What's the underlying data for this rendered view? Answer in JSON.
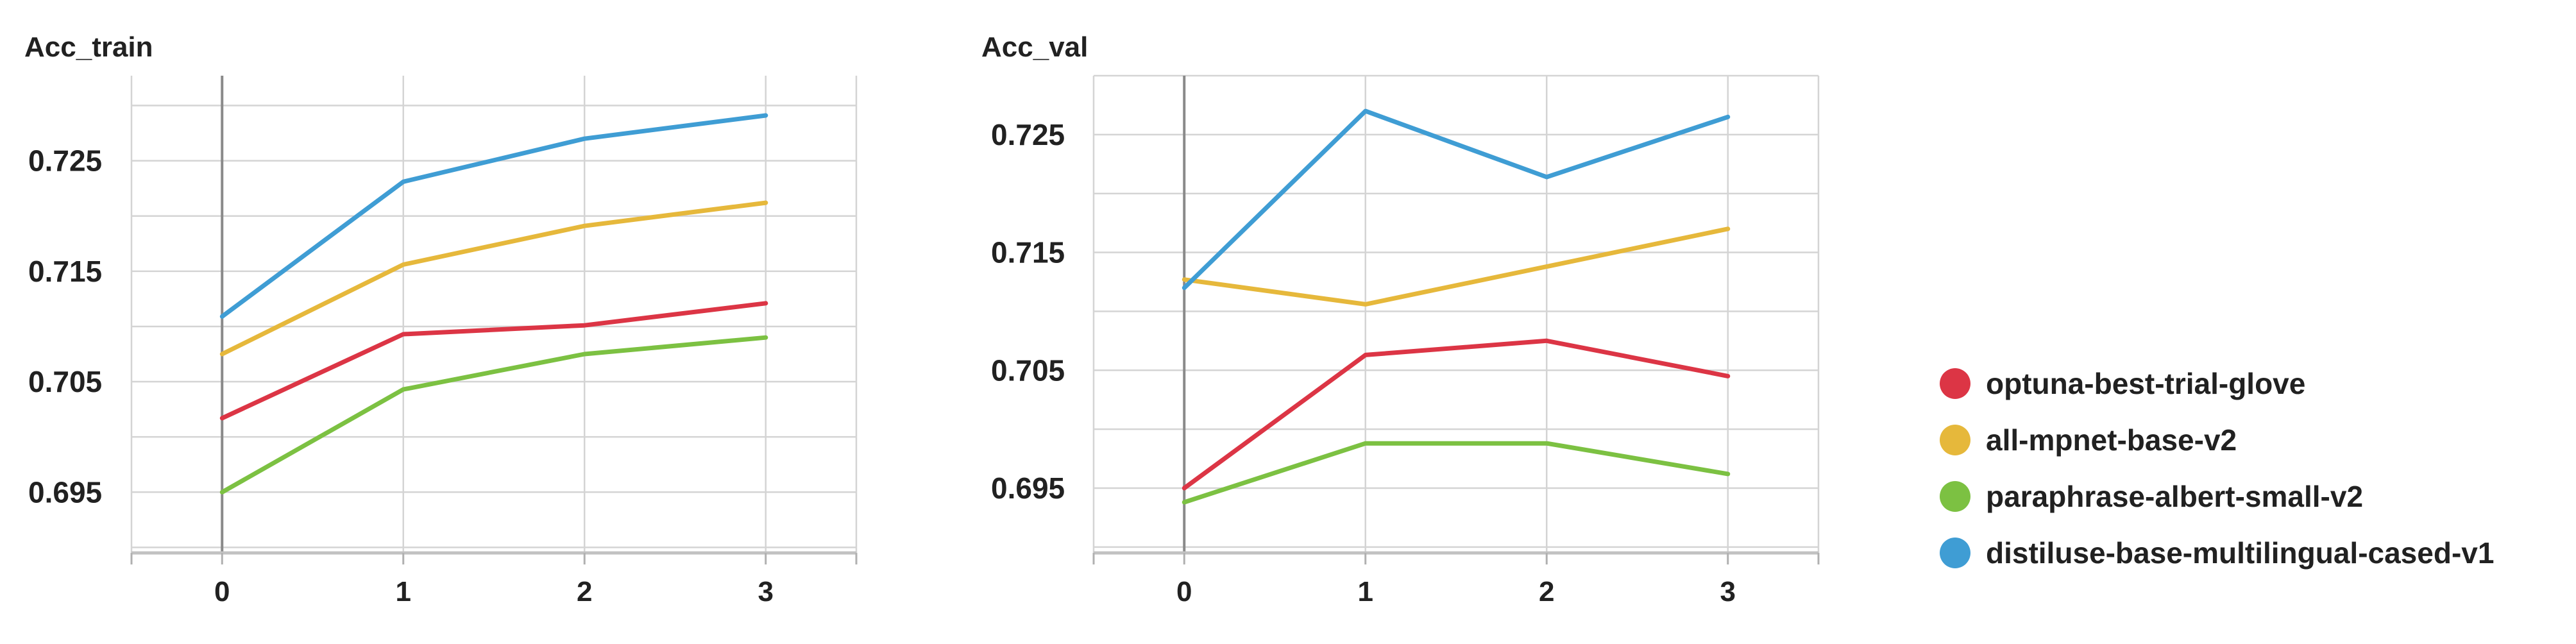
{
  "chart_data": [
    {
      "type": "line",
      "title": "Acc_train",
      "x": [
        0,
        1,
        2,
        3
      ],
      "xticks": [
        "0",
        "1",
        "2",
        "3"
      ],
      "xlim": [
        -0.5,
        3.5
      ],
      "yticks": [
        "0.695",
        "0.705",
        "0.715",
        "0.725"
      ],
      "ylim": [
        0.6895,
        0.7327
      ],
      "grid": true,
      "series": [
        {
          "name": "optuna-best-trial-glove",
          "color": "#dc3545",
          "values": [
            0.7017,
            0.7093,
            0.7101,
            0.7121
          ]
        },
        {
          "name": "all-mpnet-base-v2",
          "color": "#e6b83b",
          "values": [
            0.7075,
            0.7156,
            0.7191,
            0.7212
          ]
        },
        {
          "name": "paraphrase-albert-small-v2",
          "color": "#7cc142",
          "values": [
            0.695,
            0.7043,
            0.7075,
            0.709
          ]
        },
        {
          "name": "distiluse-base-multilingual-cased-v1",
          "color": "#3f9dd4",
          "values": [
            0.7109,
            0.7231,
            0.727,
            0.7291
          ]
        }
      ]
    },
    {
      "type": "line",
      "title": "Acc_val",
      "x": [
        0,
        1,
        2,
        3
      ],
      "xticks": [
        "0",
        "1",
        "2",
        "3"
      ],
      "xlim": [
        -0.5,
        3.5
      ],
      "yticks": [
        "0.695",
        "0.705",
        "0.715",
        "0.725"
      ],
      "ylim": [
        0.6895,
        0.73
      ],
      "grid": true,
      "series": [
        {
          "name": "optuna-best-trial-glove",
          "color": "#dc3545",
          "values": [
            0.695,
            0.7063,
            0.7075,
            0.7045
          ]
        },
        {
          "name": "all-mpnet-base-v2",
          "color": "#e6b83b",
          "values": [
            0.7127,
            0.7106,
            0.7138,
            0.717
          ]
        },
        {
          "name": "paraphrase-albert-small-v2",
          "color": "#7cc142",
          "values": [
            0.6938,
            0.6988,
            0.6988,
            0.6962
          ]
        },
        {
          "name": "distiluse-base-multilingual-cased-v1",
          "color": "#3f9dd4",
          "values": [
            0.712,
            0.727,
            0.7214,
            0.7265
          ]
        }
      ]
    }
  ],
  "legend": {
    "placement": "right",
    "items": [
      {
        "label": "optuna-best-trial-glove",
        "color": "#dc3545"
      },
      {
        "label": "all-mpnet-base-v2",
        "color": "#e6b83b"
      },
      {
        "label": "paraphrase-albert-small-v2",
        "color": "#7cc142"
      },
      {
        "label": "distiluse-base-multilingual-cased-v1",
        "color": "#3f9dd4"
      }
    ]
  }
}
